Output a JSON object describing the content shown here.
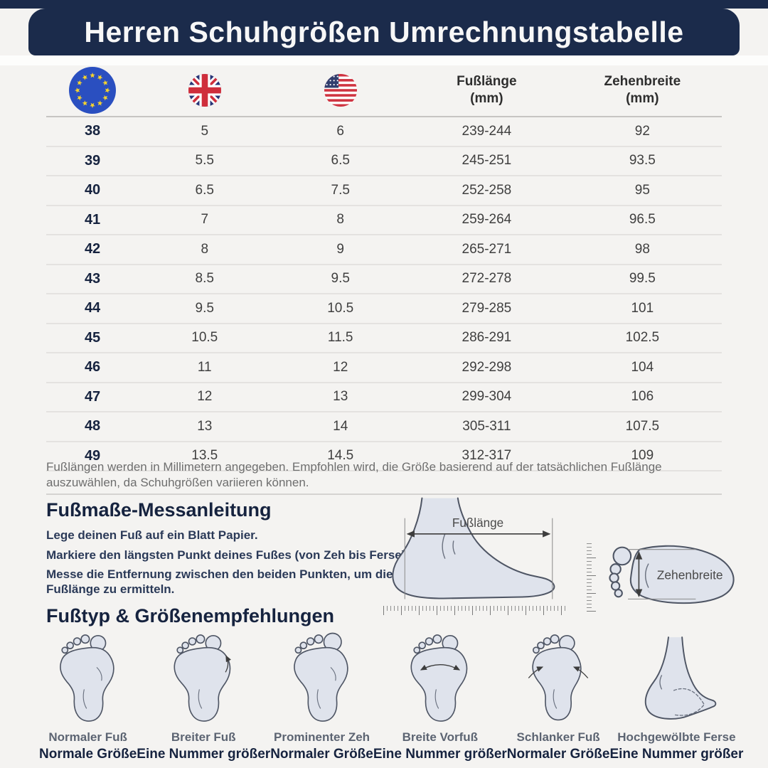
{
  "title": "Herren Schuhgrößen Umrechnungstabelle",
  "table": {
    "headers": {
      "eu_flag": "eu-flag",
      "uk_flag": "uk-flag",
      "us_flag": "us-flag",
      "foot_length": {
        "line1": "Fußlänge",
        "line2": "(mm)"
      },
      "toe_width": {
        "line1": "Zehenbreite",
        "line2": "(mm)"
      }
    },
    "rows": [
      {
        "eu": "38",
        "uk": "5",
        "us": "6",
        "length": "239-244",
        "toe": "92"
      },
      {
        "eu": "39",
        "uk": "5.5",
        "us": "6.5",
        "length": "245-251",
        "toe": "93.5"
      },
      {
        "eu": "40",
        "uk": "6.5",
        "us": "7.5",
        "length": "252-258",
        "toe": "95"
      },
      {
        "eu": "41",
        "uk": "7",
        "us": "8",
        "length": "259-264",
        "toe": "96.5"
      },
      {
        "eu": "42",
        "uk": "8",
        "us": "9",
        "length": "265-271",
        "toe": "98"
      },
      {
        "eu": "43",
        "uk": "8.5",
        "us": "9.5",
        "length": "272-278",
        "toe": "99.5"
      },
      {
        "eu": "44",
        "uk": "9.5",
        "us": "10.5",
        "length": "279-285",
        "toe": "101"
      },
      {
        "eu": "45",
        "uk": "10.5",
        "us": "11.5",
        "length": "286-291",
        "toe": "102.5"
      },
      {
        "eu": "46",
        "uk": "11",
        "us": "12",
        "length": "292-298",
        "toe": "104"
      },
      {
        "eu": "47",
        "uk": "12",
        "us": "13",
        "length": "299-304",
        "toe": "106"
      },
      {
        "eu": "48",
        "uk": "13",
        "us": "14",
        "length": "305-311",
        "toe": "107.5"
      },
      {
        "eu": "49",
        "uk": "13.5",
        "us": "14.5",
        "length": "312-317",
        "toe": "109"
      }
    ]
  },
  "note": "Fußlängen werden in Millimetern angegeben. Empfohlen wird, die Größe basierend auf der tatsächlichen Fußlänge auszuwählen, da Schuhgrößen variieren können.",
  "measuring": {
    "heading": "Fußmaße-Messanleitung",
    "steps": [
      "Lege deinen Fuß auf ein Blatt Papier.",
      "Markiere den längsten Punkt deines Fußes (von Zeh bis Ferse).",
      "Messe die Entfernung zwischen den beiden Punkten, um die Fußlänge zu ermitteln."
    ],
    "diagram_labels": {
      "foot_length": "Fußlänge",
      "toe_width": "Zehenbreite"
    }
  },
  "foot_types": {
    "heading": "Fußtyp & Größenempfehlungen",
    "items": [
      {
        "type": "Normaler Fuß",
        "recommendation": "Normale Größe"
      },
      {
        "type": "Breiter Fuß",
        "recommendation": "Eine Nummer größer"
      },
      {
        "type": "Prominenter Zeh",
        "recommendation": "Normaler Größe"
      },
      {
        "type": "Breite Vorfuß",
        "recommendation": "Eine Nummer größer"
      },
      {
        "type": "Schlanker Fuß",
        "recommendation": "Normaler Größe"
      },
      {
        "type": "Hochgewölbte Ferse",
        "recommendation": "Eine Nummer größer"
      }
    ]
  },
  "colors": {
    "navy": "#1b2b4b",
    "background": "#f4f3f1",
    "heading_text": "#16233f",
    "body_text": "#3f3f3f",
    "note_text": "#6e6e6e",
    "divider": "#e4e2e0",
    "foot_fill": "#dfe3ec",
    "foot_stroke": "#4e5564",
    "eu_blue": "#2a4fc0",
    "star_yellow": "#f6d32d",
    "uk_navy": "#283577",
    "flag_red": "#cf2e3c",
    "us_blue": "#323e6e"
  }
}
